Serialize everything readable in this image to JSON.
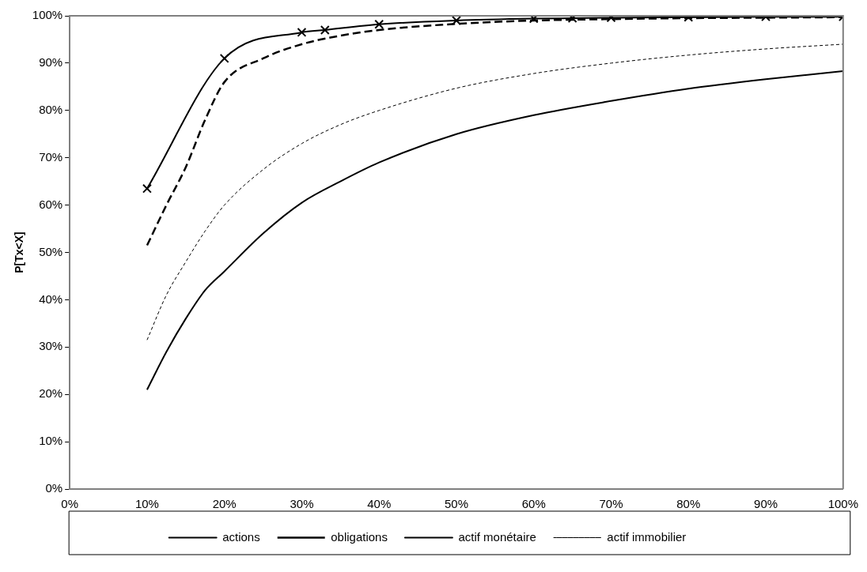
{
  "chart_data": {
    "type": "line",
    "ylabel": "P[Tx<X]",
    "xlim": [
      0,
      100
    ],
    "ylim": [
      0,
      100
    ],
    "xticks": [
      {
        "value": 0,
        "label": "0%"
      },
      {
        "value": 10,
        "label": "10%"
      },
      {
        "value": 20,
        "label": "20%"
      },
      {
        "value": 30,
        "label": "30%"
      },
      {
        "value": 40,
        "label": "40%"
      },
      {
        "value": 50,
        "label": "50%"
      },
      {
        "value": 60,
        "label": "60%"
      },
      {
        "value": 70,
        "label": "70%"
      },
      {
        "value": 80,
        "label": "80%"
      },
      {
        "value": 90,
        "label": "90%"
      },
      {
        "value": 100,
        "label": "100%"
      }
    ],
    "yticks": [
      {
        "value": 0,
        "label": "0%"
      },
      {
        "value": 10,
        "label": "10%"
      },
      {
        "value": 20,
        "label": "20%"
      },
      {
        "value": 30,
        "label": "30%"
      },
      {
        "value": 40,
        "label": "40%"
      },
      {
        "value": 50,
        "label": "50%"
      },
      {
        "value": 60,
        "label": "60%"
      },
      {
        "value": 70,
        "label": "70%"
      },
      {
        "value": 80,
        "label": "80%"
      },
      {
        "value": 90,
        "label": "90%"
      },
      {
        "value": 100,
        "label": "100%"
      }
    ],
    "grid": false,
    "legend": "bottom",
    "series": [
      {
        "name": "actions",
        "color": "#000000",
        "line_style": "solid",
        "marker": "none",
        "x": [
          10,
          12.5,
          15,
          17.5,
          20,
          25,
          30,
          35,
          40,
          50,
          60,
          70,
          80,
          90,
          100
        ],
        "values": [
          21,
          29,
          36,
          42,
          46,
          54,
          60.5,
          65,
          69,
          75,
          79,
          82,
          84.6,
          86.6,
          88.3
        ]
      },
      {
        "name": "obligations",
        "color": "#000000",
        "line_style": "dashed",
        "marker": "none",
        "x": [
          10,
          12.5,
          15,
          17.5,
          20,
          25,
          30,
          35,
          40,
          50,
          60,
          70,
          80,
          90,
          100
        ],
        "values": [
          51.5,
          60,
          68,
          78,
          86,
          91,
          94,
          95.8,
          97,
          98.3,
          99,
          99.3,
          99.5,
          99.6,
          99.7
        ]
      },
      {
        "name": "actif monétaire",
        "color": "#000000",
        "line_style": "solid",
        "marker": "cross",
        "x": [
          10,
          20,
          30,
          33,
          40,
          50,
          60,
          65,
          70,
          80,
          90,
          100
        ],
        "values": [
          63.5,
          91,
          96.5,
          97,
          98.2,
          99,
          99.4,
          99.5,
          99.6,
          99.7,
          99.8,
          99.8
        ]
      },
      {
        "name": "actif immobilier",
        "color": "#000000",
        "line_style": "dotted",
        "marker": "none",
        "x": [
          10,
          12.5,
          15,
          17.5,
          20,
          25,
          30,
          35,
          40,
          50,
          60,
          70,
          80,
          90,
          100
        ],
        "values": [
          31.5,
          41,
          48,
          54.5,
          60,
          67.5,
          73,
          77,
          80,
          84.7,
          87.8,
          90,
          91.7,
          93,
          94
        ]
      }
    ]
  }
}
